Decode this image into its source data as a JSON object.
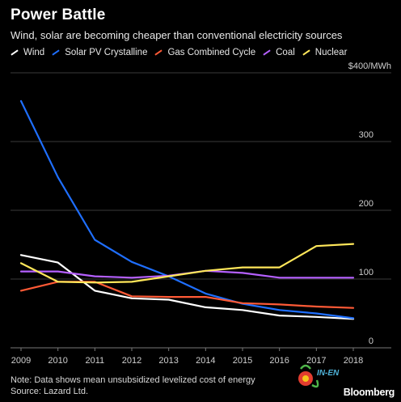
{
  "header": {
    "title": "Power Battle",
    "subtitle": "Wind, solar are becoming cheaper than conventional electricity sources"
  },
  "chart_data": {
    "type": "line",
    "title": "Power Battle",
    "subtitle": "Wind, solar are becoming cheaper than conventional electricity sources",
    "xlabel": "",
    "ylabel": "",
    "y_unit_label": "$400/MWh",
    "x": [
      "2009",
      "2010",
      "2011",
      "2012",
      "2013",
      "2014",
      "2015",
      "2016",
      "2017",
      "2018"
    ],
    "ylim": [
      0,
      400
    ],
    "y_ticks": [
      0,
      100,
      200,
      300
    ],
    "grid": true,
    "legend_position": "top",
    "series": [
      {
        "name": "Wind",
        "color": "#ffffff",
        "values": [
          135,
          124,
          83,
          72,
          70,
          59,
          55,
          47,
          45,
          42
        ]
      },
      {
        "name": "Solar PV Crystalline",
        "color": "#1f6fff",
        "values": [
          359,
          248,
          157,
          125,
          104,
          79,
          64,
          55,
          50,
          43
        ]
      },
      {
        "name": "Gas Combined Cycle",
        "color": "#ff5a36",
        "values": [
          83,
          96,
          96,
          75,
          74,
          74,
          65,
          63,
          60,
          58
        ]
      },
      {
        "name": "Coal",
        "color": "#b560ff",
        "values": [
          111,
          111,
          104,
          102,
          105,
          112,
          109,
          102,
          102,
          102
        ]
      },
      {
        "name": "Nuclear",
        "color": "#ffe75a",
        "values": [
          123,
          96,
          95,
          96,
          104,
          112,
          117,
          117,
          148,
          151
        ]
      }
    ]
  },
  "footer": {
    "note": "Note: Data shows mean unsubsidized levelized cost of energy",
    "source": "Source: Lazard Ltd.",
    "brand": "Bloomberg",
    "watermark_text": "IN-EN"
  },
  "colors": {
    "background": "#000000",
    "grid": "#3a3a3a",
    "axis_text": "#cfcfcf"
  }
}
